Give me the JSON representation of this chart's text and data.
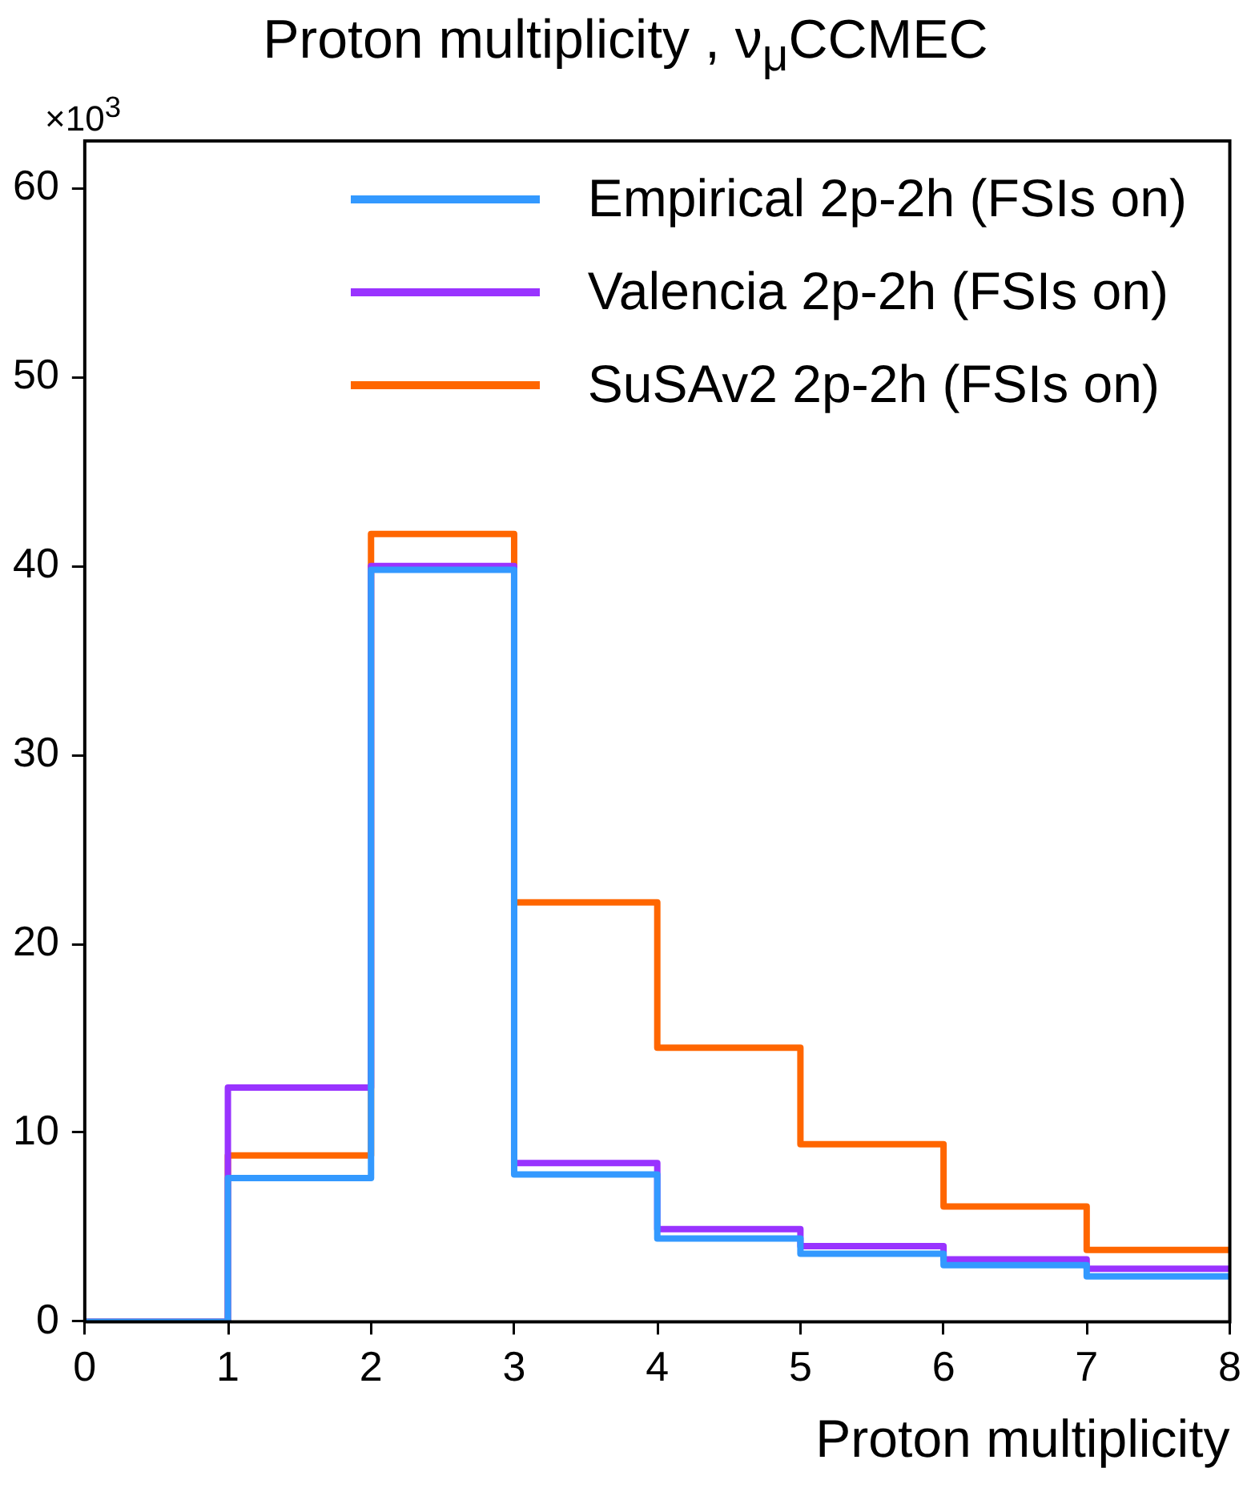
{
  "chart_data": {
    "type": "histogram",
    "title": "Proton multiplicity , ν$_{μ}$CCMEC",
    "xlabel": "Proton multiplicity",
    "annotations": [
      "×10$^{3}$"
    ],
    "bins": [
      0,
      1,
      2,
      3,
      4,
      5,
      6,
      7,
      8
    ],
    "series": [
      {
        "name": "Empirical 2p-2h (FSIs on)",
        "color": "#3399ff",
        "values": [
          0,
          7.6,
          39.8,
          7.8,
          4.4,
          3.6,
          3.0,
          2.4
        ]
      },
      {
        "name": "Valencia 2p-2h (FSIs on)",
        "color": "#9933ff",
        "values": [
          0,
          12.4,
          40.0,
          8.4,
          4.9,
          4.0,
          3.3,
          2.8
        ]
      },
      {
        "name": "SuSAv2 2p-2h (FSIs on)",
        "color": "#ff6600",
        "values": [
          0,
          8.8,
          41.7,
          22.2,
          14.5,
          9.4,
          6.1,
          3.8
        ]
      }
    ],
    "xlim": [
      0,
      8
    ],
    "xticks": [
      0,
      1,
      2,
      3,
      4,
      5,
      6,
      7,
      8
    ],
    "ylim": [
      0,
      62.5
    ],
    "yticks": [
      0,
      10,
      20,
      30,
      40,
      50,
      60
    ],
    "grid": false,
    "legend": "top right"
  }
}
